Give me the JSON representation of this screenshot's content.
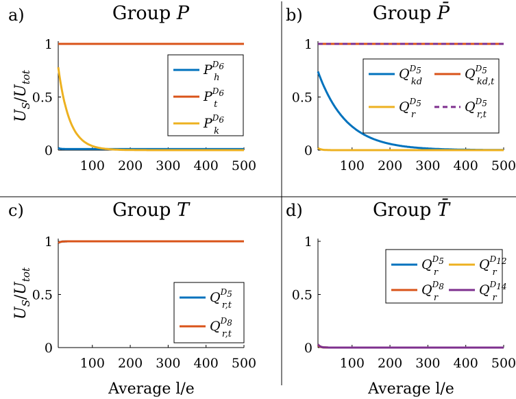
{
  "figure": {
    "xlabel_shared": "Average l/e",
    "ylabel_shared": "U_S/U_tot"
  },
  "chart_data": [
    {
      "panel": "a)",
      "type": "line",
      "title": "Group P",
      "title_plain": "Group ",
      "title_sym": "P",
      "title_bar": false,
      "xlabel": "",
      "ylabel": "U_S/U_tot",
      "xlim": [
        10,
        500
      ],
      "ylim": [
        0,
        1
      ],
      "xticks": [
        100,
        200,
        300,
        400,
        500
      ],
      "yticks": [
        0,
        0.5,
        1
      ],
      "grid": false,
      "legend": {
        "placement": "right",
        "columns": 1
      },
      "series": [
        {
          "name": "P_h^{D6}",
          "color": "#0072BD",
          "curve": "const",
          "params": {
            "y": 0.01,
            "a": 0.02,
            "x0": 10
          }
        },
        {
          "name": "P_t^{D6}",
          "color": "#D95319",
          "curve": "const",
          "params": {
            "y": 1.0
          }
        },
        {
          "name": "P_k^{D6}",
          "color": "#EDB120",
          "curve": "decay",
          "params": {
            "y0": 0.78,
            "x0": 10,
            "tau": 30,
            "floor": 0.0
          }
        }
      ]
    },
    {
      "panel": "b)",
      "type": "line",
      "title": "Group P̄",
      "title_plain": "Group ",
      "title_sym": "P",
      "title_bar": true,
      "xlabel": "",
      "ylabel": "",
      "xlim": [
        10,
        500
      ],
      "ylim": [
        0,
        1
      ],
      "xticks": [
        100,
        200,
        300,
        400,
        500
      ],
      "yticks": [
        0,
        0.5,
        1
      ],
      "grid": false,
      "legend": {
        "placement": "center",
        "columns": 2
      },
      "series": [
        {
          "name": "Q_kd^{D5}",
          "color": "#0072BD",
          "curve": "decay",
          "params": {
            "y0": 0.74,
            "x0": 10,
            "tau": 75,
            "floor": 0.0
          }
        },
        {
          "name": "Q_kd,t^{D5}",
          "color": "#D95319",
          "curve": "const",
          "params": {
            "y": 1.0
          }
        },
        {
          "name": "Q_r^{D5}",
          "color": "#EDB120",
          "curve": "decay",
          "params": {
            "y0": 0.02,
            "x0": 10,
            "tau": 8,
            "floor": 0.0
          }
        },
        {
          "name": "Q_r,t^{D5}",
          "color": "#7E2F8E",
          "dashed": true,
          "curve": "const",
          "params": {
            "y": 1.0
          }
        }
      ]
    },
    {
      "panel": "c)",
      "type": "line",
      "title": "Group T",
      "title_plain": "Group ",
      "title_sym": "T",
      "title_bar": false,
      "xlabel": "Average l/e",
      "ylabel": "U_S/U_tot",
      "xlim": [
        10,
        500
      ],
      "ylim": [
        0,
        1
      ],
      "xticks": [
        100,
        200,
        300,
        400,
        500
      ],
      "yticks": [
        0,
        0.5,
        1
      ],
      "grid": false,
      "legend": {
        "placement": "bottom-right",
        "columns": 1
      },
      "series": [
        {
          "name": "Q_r,t^{D5}",
          "color": "#0072BD",
          "curve": "rise",
          "params": {
            "y0": 0.985,
            "y1": 1.0,
            "x0": 10,
            "tau": 6
          }
        },
        {
          "name": "Q_r,t^{D8}",
          "color": "#D95319",
          "curve": "rise",
          "params": {
            "y0": 0.985,
            "y1": 1.0,
            "x0": 10,
            "tau": 6
          }
        }
      ]
    },
    {
      "panel": "d)",
      "type": "line",
      "title": "Group T̄",
      "title_plain": "Group ",
      "title_sym": "T",
      "title_bar": true,
      "xlabel": "Average l/e",
      "ylabel": "",
      "xlim": [
        10,
        500
      ],
      "ylim": [
        0,
        1
      ],
      "xticks": [
        100,
        200,
        300,
        400,
        500
      ],
      "yticks": [
        0,
        0.5,
        1
      ],
      "grid": false,
      "legend": {
        "placement": "top-right",
        "columns": 2
      },
      "series": [
        {
          "name": "Q_r^{D5}",
          "color": "#0072BD",
          "curve": "decay",
          "params": {
            "y0": 0.02,
            "x0": 10,
            "tau": 6,
            "floor": 0.0
          }
        },
        {
          "name": "Q_r^{D8}",
          "color": "#D95319",
          "curve": "decay",
          "params": {
            "y0": 0.02,
            "x0": 10,
            "tau": 6,
            "floor": 0.0
          }
        },
        {
          "name": "Q_r^{D12}",
          "color": "#EDB120",
          "curve": "decay",
          "params": {
            "y0": 0.03,
            "x0": 10,
            "tau": 6,
            "floor": 0.0
          }
        },
        {
          "name": "Q_r^{D14}",
          "color": "#7E2F8E",
          "curve": "decay",
          "params": {
            "y0": 0.03,
            "x0": 10,
            "tau": 6,
            "floor": 0.0
          }
        }
      ]
    }
  ]
}
